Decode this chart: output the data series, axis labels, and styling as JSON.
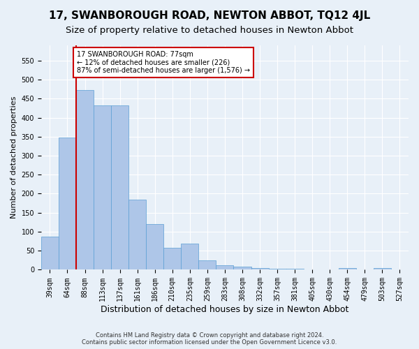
{
  "title": "17, SWANBOROUGH ROAD, NEWTON ABBOT, TQ12 4JL",
  "subtitle": "Size of property relative to detached houses in Newton Abbot",
  "xlabel": "Distribution of detached houses by size in Newton Abbot",
  "ylabel": "Number of detached properties",
  "footer_line1": "Contains HM Land Registry data © Crown copyright and database right 2024.",
  "footer_line2": "Contains public sector information licensed under the Open Government Licence v3.0.",
  "categories": [
    "39sqm",
    "64sqm",
    "88sqm",
    "113sqm",
    "137sqm",
    "161sqm",
    "186sqm",
    "210sqm",
    "235sqm",
    "259sqm",
    "283sqm",
    "308sqm",
    "332sqm",
    "357sqm",
    "381sqm",
    "405sqm",
    "430sqm",
    "454sqm",
    "479sqm",
    "503sqm",
    "527sqm"
  ],
  "values": [
    88,
    348,
    472,
    432,
    432,
    184,
    120,
    57,
    68,
    25,
    12,
    9,
    5,
    2,
    2,
    0,
    0,
    5,
    0,
    5,
    0
  ],
  "bar_color": "#aec6e8",
  "bar_edge_color": "#5a9fd4",
  "red_line_x": 1.5,
  "annotation_text": "17 SWANBOROUGH ROAD: 77sqm\n← 12% of detached houses are smaller (226)\n87% of semi-detached houses are larger (1,576) →",
  "annotation_box_color": "#ffffff",
  "annotation_border_color": "#cc0000",
  "ylim": [
    0,
    590
  ],
  "yticks": [
    0,
    50,
    100,
    150,
    200,
    250,
    300,
    350,
    400,
    450,
    500,
    550
  ],
  "background_color": "#e8f0f8",
  "grid_color": "#ffffff",
  "title_fontsize": 11,
  "subtitle_fontsize": 9.5,
  "ylabel_fontsize": 8,
  "xlabel_fontsize": 9,
  "tick_fontsize": 7,
  "footer_fontsize": 6
}
